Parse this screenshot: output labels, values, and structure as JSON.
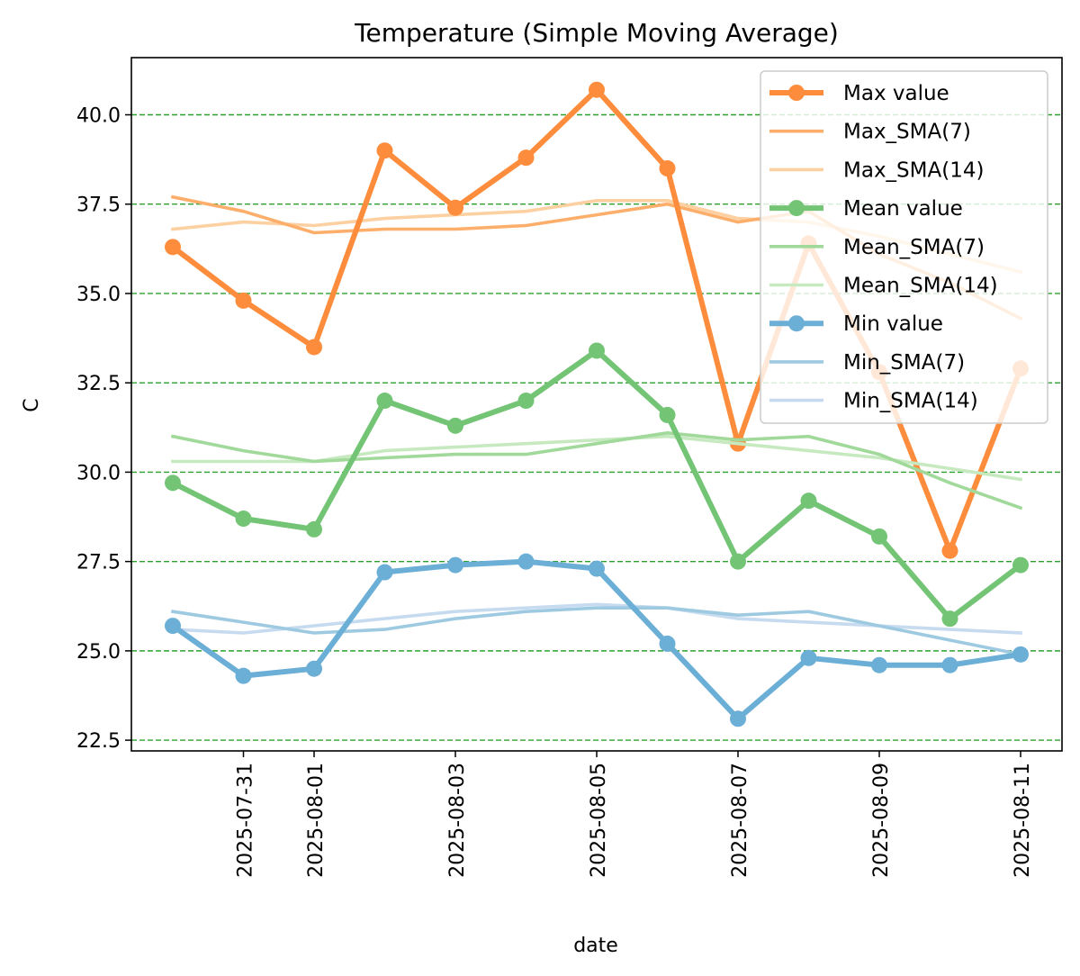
{
  "chart_data": {
    "type": "line",
    "title": "Temperature (Simple Moving Average)",
    "xlabel": "date",
    "ylabel": "C",
    "x": [
      "2025-07-30",
      "2025-07-31",
      "2025-08-01",
      "2025-08-02",
      "2025-08-03",
      "2025-08-04",
      "2025-08-05",
      "2025-08-06",
      "2025-08-07",
      "2025-08-08",
      "2025-08-09",
      "2025-08-10",
      "2025-08-11"
    ],
    "x_ticks": [
      "2025-07-31",
      "2025-08-01",
      "2025-08-03",
      "2025-08-05",
      "2025-08-07",
      "2025-08-09",
      "2025-08-11"
    ],
    "ylim": [
      22.2,
      41.6
    ],
    "y_ticks": [
      22.5,
      25.0,
      27.5,
      30.0,
      32.5,
      35.0,
      37.5,
      40.0
    ],
    "grid": "horizontal dashed green",
    "legend_position": "top-right",
    "series": [
      {
        "name": "Max value",
        "color": "#fd8d3c",
        "style": "thick-marker",
        "values": [
          36.3,
          34.8,
          33.5,
          39.0,
          37.4,
          38.8,
          40.7,
          38.5,
          30.8,
          36.4,
          32.8,
          27.8,
          32.9
        ]
      },
      {
        "name": "Max_SMA(7)",
        "color": "#fdae6b",
        "style": "thin",
        "values": [
          37.7,
          37.3,
          36.7,
          36.8,
          36.8,
          36.9,
          37.2,
          37.5,
          37.0,
          37.3,
          36.1,
          35.3,
          34.3
        ]
      },
      {
        "name": "Max_SMA(14)",
        "color": "#fdd0a2",
        "style": "thin",
        "values": [
          36.8,
          37.0,
          36.9,
          37.1,
          37.2,
          37.3,
          37.6,
          37.6,
          37.1,
          37.0,
          36.6,
          36.1,
          35.6
        ]
      },
      {
        "name": "Mean value",
        "color": "#74c476",
        "style": "thick-marker",
        "values": [
          29.7,
          28.7,
          28.4,
          32.0,
          31.3,
          32.0,
          33.4,
          31.6,
          27.5,
          29.2,
          28.2,
          25.9,
          27.4
        ]
      },
      {
        "name": "Mean_SMA(7)",
        "color": "#a1d99b",
        "style": "thin",
        "values": [
          31.0,
          30.6,
          30.3,
          30.4,
          30.5,
          30.5,
          30.8,
          31.1,
          30.9,
          31.0,
          30.5,
          29.7,
          29.0
        ]
      },
      {
        "name": "Mean_SMA(14)",
        "color": "#c7e9c0",
        "style": "thin",
        "values": [
          30.3,
          30.3,
          30.3,
          30.6,
          30.7,
          30.8,
          30.9,
          31.0,
          30.8,
          30.6,
          30.4,
          30.1,
          29.8
        ]
      },
      {
        "name": "Min value",
        "color": "#6baed6",
        "style": "thick-marker",
        "values": [
          25.7,
          24.3,
          24.5,
          27.2,
          27.4,
          27.5,
          27.3,
          25.2,
          23.1,
          24.8,
          24.6,
          24.6,
          24.9
        ]
      },
      {
        "name": "Min_SMA(7)",
        "color": "#9ecae1",
        "style": "thin",
        "values": [
          26.1,
          25.8,
          25.5,
          25.6,
          25.9,
          26.1,
          26.2,
          26.2,
          26.0,
          26.1,
          25.7,
          25.3,
          24.9
        ]
      },
      {
        "name": "Min_SMA(14)",
        "color": "#c6dbef",
        "style": "thin",
        "values": [
          25.6,
          25.5,
          25.7,
          25.9,
          26.1,
          26.2,
          26.3,
          26.2,
          25.9,
          25.8,
          25.7,
          25.6,
          25.5
        ]
      }
    ]
  }
}
